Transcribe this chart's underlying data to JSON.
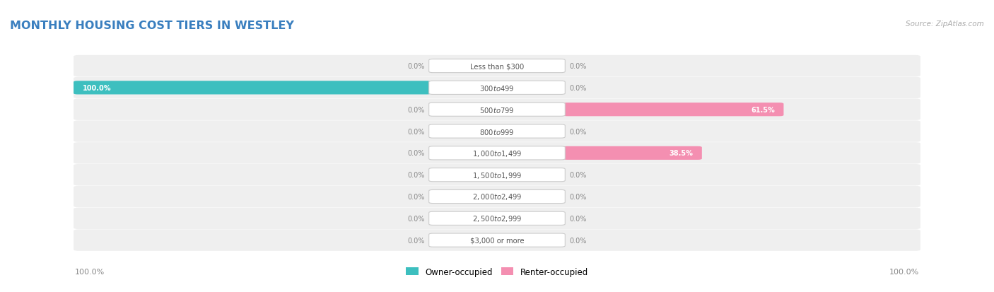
{
  "title": "MONTHLY HOUSING COST TIERS IN WESTLEY",
  "source": "Source: ZipAtlas.com",
  "categories": [
    "Less than $300",
    "$300 to $499",
    "$500 to $799",
    "$800 to $999",
    "$1,000 to $1,499",
    "$1,500 to $1,999",
    "$2,000 to $2,499",
    "$2,500 to $2,999",
    "$3,000 or more"
  ],
  "owner_values": [
    0.0,
    100.0,
    0.0,
    0.0,
    0.0,
    0.0,
    0.0,
    0.0,
    0.0
  ],
  "renter_values": [
    0.0,
    0.0,
    61.5,
    0.0,
    38.5,
    0.0,
    0.0,
    0.0,
    0.0
  ],
  "owner_color": "#3DBFBF",
  "renter_color": "#F48FB1",
  "row_bg_color": "#EFEFEF",
  "title_color": "#3a7fbf",
  "source_color": "#aaaaaa",
  "label_dark_color": "#888888",
  "label_white_color": "#ffffff",
  "center_label_color": "#555555",
  "axis_max": 100.0,
  "figsize": [
    14.06,
    4.14
  ],
  "dpi": 100,
  "legend_owner": "Owner-occupied",
  "legend_renter": "Renter-occupied",
  "bottom_left_label": "100.0%",
  "bottom_right_label": "100.0%"
}
